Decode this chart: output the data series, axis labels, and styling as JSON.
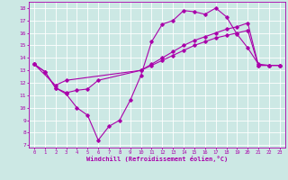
{
  "xlabel": "Windchill (Refroidissement éolien,°C)",
  "bg_color": "#cce8e4",
  "line_color": "#aa00aa",
  "grid_color": "#ffffff",
  "xlim": [
    -0.5,
    23.5
  ],
  "ylim": [
    6.8,
    18.5
  ],
  "xticks": [
    0,
    1,
    2,
    3,
    4,
    5,
    6,
    7,
    8,
    9,
    10,
    11,
    12,
    13,
    14,
    15,
    16,
    17,
    18,
    19,
    20,
    21,
    22,
    23
  ],
  "yticks": [
    7,
    8,
    9,
    10,
    11,
    12,
    13,
    14,
    15,
    16,
    17,
    18
  ],
  "line1_x": [
    0,
    1,
    2,
    3,
    4,
    5,
    6,
    7,
    8,
    9,
    10,
    11,
    12,
    13,
    14,
    15,
    16,
    17,
    18,
    19,
    20,
    21,
    22,
    23
  ],
  "line1_y": [
    13.5,
    12.9,
    11.6,
    11.1,
    10.0,
    9.4,
    7.4,
    8.5,
    9.0,
    10.6,
    12.6,
    15.3,
    16.7,
    17.0,
    17.8,
    17.7,
    17.5,
    18.0,
    17.3,
    15.9,
    14.8,
    13.5,
    13.4,
    13.4
  ],
  "line2_x": [
    0,
    2,
    3,
    10,
    11,
    12,
    13,
    14,
    15,
    16,
    17,
    18,
    19,
    20,
    21,
    22,
    23
  ],
  "line2_y": [
    13.5,
    11.8,
    12.2,
    13.0,
    13.4,
    13.8,
    14.2,
    14.6,
    15.0,
    15.3,
    15.6,
    15.8,
    16.0,
    16.2,
    13.4,
    13.4,
    13.4
  ],
  "line3_x": [
    0,
    1,
    2,
    3,
    4,
    5,
    6,
    10,
    11,
    12,
    13,
    14,
    15,
    16,
    17,
    18,
    19,
    20,
    21,
    22,
    23
  ],
  "line3_y": [
    13.5,
    12.9,
    11.6,
    11.2,
    11.4,
    11.5,
    12.2,
    13.0,
    13.5,
    14.0,
    14.5,
    15.0,
    15.4,
    15.7,
    16.0,
    16.3,
    16.5,
    16.8,
    13.4,
    13.4,
    13.4
  ]
}
